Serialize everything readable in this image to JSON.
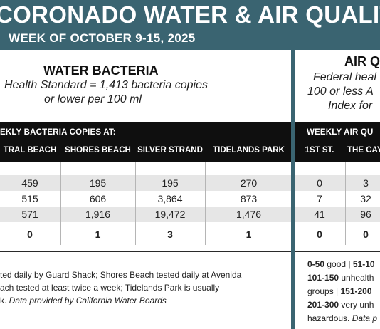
{
  "header": {
    "title": "CORONADO WATER & AIR QUALITY R",
    "week": "WEEK OF OCTOBER 9-15, 2025"
  },
  "water": {
    "title": "WATER BACTERIA",
    "standard_line1": "Health Standard  = 1,413 bacteria copies",
    "standard_line2": "or lower per 100 ml",
    "bar_label": "EKLY BACTERIA COPIES AT:",
    "columns": [
      "TRAL BEACH",
      "SHORES BEACH",
      "SILVER STRAND",
      "TIDELANDS PARK"
    ],
    "rows": [
      [
        "",
        "",
        "",
        ""
      ],
      [
        "459",
        "195",
        "195",
        "270"
      ],
      [
        "515",
        "606",
        "3,864",
        "873"
      ],
      [
        "571",
        "1,916",
        "19,472",
        "1,476"
      ],
      [
        "0",
        "1",
        "3",
        "1"
      ]
    ],
    "note_line1": "ted daily by Guard Shack; Shores Beach tested daily at Avenida",
    "note_line2": "ach tested at least twice a week; Tidelands Park is usually",
    "note_line3_plain": "k. ",
    "note_line3_italic": "Data provided by California Water Boards"
  },
  "air": {
    "title": "AIR Q",
    "sub_line1": "Federal heal",
    "sub_line2": "100 or less A",
    "sub_line3": "Index for",
    "bar_label": "WEEKLY AIR QU",
    "columns": [
      "1ST ST.",
      "THE CAY"
    ],
    "rows": [
      [
        "",
        ""
      ],
      [
        "0",
        "3"
      ],
      [
        "7",
        "32"
      ],
      [
        "41",
        "96"
      ],
      [
        "0",
        "0"
      ]
    ],
    "legend": {
      "l1_b1": "0-50",
      "l1_t1": " good | ",
      "l1_b2": "51-10",
      "l2_b1": "101-150",
      "l2_t1": " unhealth",
      "l3_t1": "groups | ",
      "l3_b1": "151-200",
      "l4_b1": "201-300",
      "l4_t1": " very unh",
      "l5_t1": "hazardous. ",
      "l5_i1": "Data p"
    }
  }
}
